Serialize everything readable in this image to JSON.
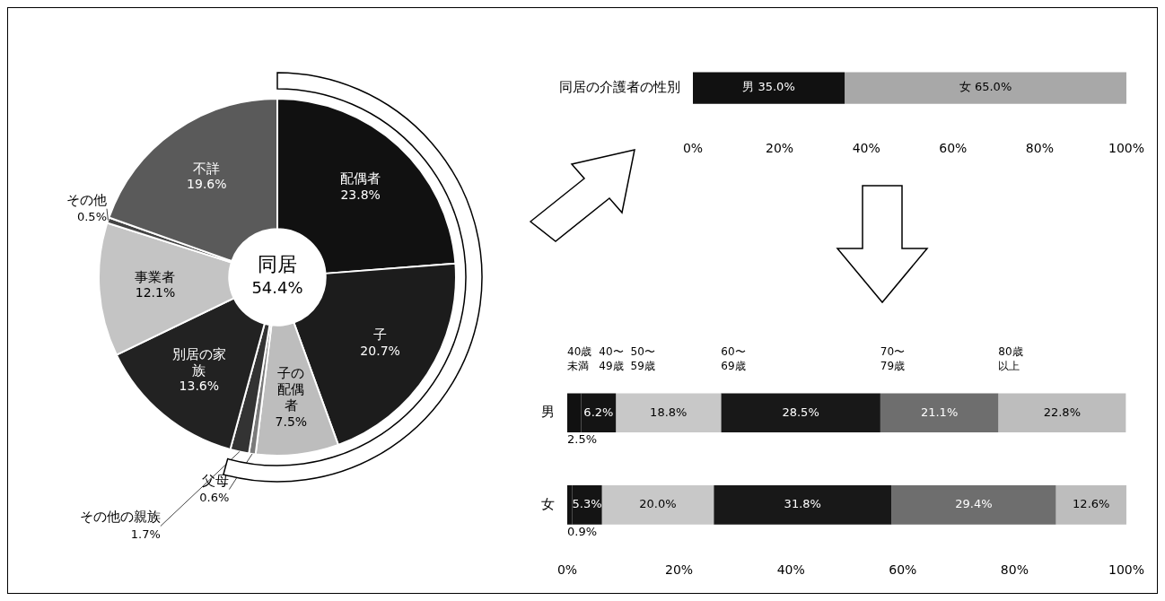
{
  "chart_data": [
    {
      "type": "donut",
      "categories": [
        "配偶者",
        "子",
        "子の配偶者",
        "父母",
        "その他の親族",
        "別居の家族",
        "事業者",
        "その他",
        "不詳"
      ],
      "values": [
        23.8,
        20.7,
        7.5,
        0.6,
        1.7,
        13.6,
        12.1,
        0.5,
        19.6
      ],
      "colors": [
        "#111111",
        "#1c1c1c",
        "#bdbdbd",
        "#7a7a7a",
        "#333333",
        "#222222",
        "#c4c4c4",
        "#444444",
        "#5a5a5a"
      ],
      "value_labels": [
        "23.8%",
        "20.7%",
        "7.5%",
        "0.6%",
        "1.7%",
        "13.6%",
        "12.1%",
        "0.5%",
        "19.6%"
      ],
      "annotations": [
        "同居\n54.4%"
      ]
    },
    {
      "type": "bar",
      "orientation": "horizontal",
      "stacked": true,
      "categories": [
        "同居の介護者の性別"
      ],
      "series": [
        {
          "color": "#111111",
          "values": [
            35.0
          ],
          "value_labels": [
            "男 35.0%"
          ]
        },
        {
          "color": "#a8a8a8",
          "values": [
            65.0
          ],
          "value_labels": [
            "女 65.0%"
          ]
        }
      ],
      "xlim": [
        0,
        100
      ],
      "xticks": [
        {
          "value": 0,
          "label": "0%"
        },
        {
          "value": 20,
          "label": "20%"
        },
        {
          "value": 40,
          "label": "40%"
        },
        {
          "value": 60,
          "label": "60%"
        },
        {
          "value": 80,
          "label": "80%"
        },
        {
          "value": 100,
          "label": "100%"
        }
      ]
    },
    {
      "type": "bar",
      "orientation": "horizontal",
      "stacked": true,
      "categories": [
        "男",
        "女"
      ],
      "series": [
        {
          "name": "40歳未満",
          "color": "#111111",
          "values": [
            2.5,
            0.9
          ],
          "value_labels": [
            "2.5%",
            "0.9%"
          ]
        },
        {
          "name": "40〜49歳",
          "color": "#141414",
          "values": [
            6.2,
            5.3
          ],
          "value_labels": [
            "6.2%",
            "5.3%"
          ]
        },
        {
          "name": "50〜59歳",
          "color": "#c8c8c8",
          "values": [
            18.8,
            20.0
          ],
          "value_labels": [
            "18.8%",
            "20.0%"
          ]
        },
        {
          "name": "60〜69歳",
          "color": "#181818",
          "values": [
            28.5,
            31.8
          ],
          "value_labels": [
            "28.5%",
            "31.8%"
          ]
        },
        {
          "name": "70〜79歳",
          "color": "#6e6e6e",
          "values": [
            21.1,
            29.4
          ],
          "value_labels": [
            "21.1%",
            "29.4%"
          ]
        },
        {
          "name": "80歳以上",
          "color": "#bdbdbd",
          "values": [
            22.8,
            12.6
          ],
          "value_labels": [
            "22.8%",
            "12.6%"
          ]
        }
      ],
      "xlim": [
        0,
        100
      ],
      "xticks": [
        {
          "value": 0,
          "label": "0%"
        },
        {
          "value": 20,
          "label": "20%"
        },
        {
          "value": 40,
          "label": "40%"
        },
        {
          "value": 60,
          "label": "60%"
        },
        {
          "value": 80,
          "label": "80%"
        },
        {
          "value": 100,
          "label": "100%"
        }
      ]
    }
  ]
}
